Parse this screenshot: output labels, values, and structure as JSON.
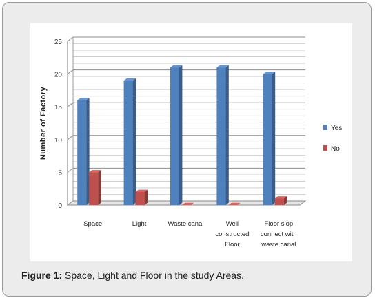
{
  "chart_data": {
    "type": "bar",
    "title": "",
    "xlabel": "",
    "ylabel": "Number of Factory",
    "ylim": [
      0,
      25
    ],
    "yticks": [
      0,
      5,
      10,
      15,
      20,
      25
    ],
    "categories": [
      [
        "Space"
      ],
      [
        "Light"
      ],
      [
        "Waste canal"
      ],
      [
        "Well",
        "constructed",
        "Floor"
      ],
      [
        "Floor slop",
        "connect with",
        "waste canal"
      ]
    ],
    "series": [
      {
        "name": "Yes",
        "color": "#4f81bd",
        "values": [
          16,
          19,
          21,
          21,
          20
        ]
      },
      {
        "name": "No",
        "color": "#c0504d",
        "values": [
          5,
          2,
          0,
          0,
          1
        ]
      }
    ],
    "legend_position": "right",
    "grid": true
  },
  "caption": {
    "label": "Figure 1:",
    "text": " Space, Light and Floor in the study Areas."
  }
}
